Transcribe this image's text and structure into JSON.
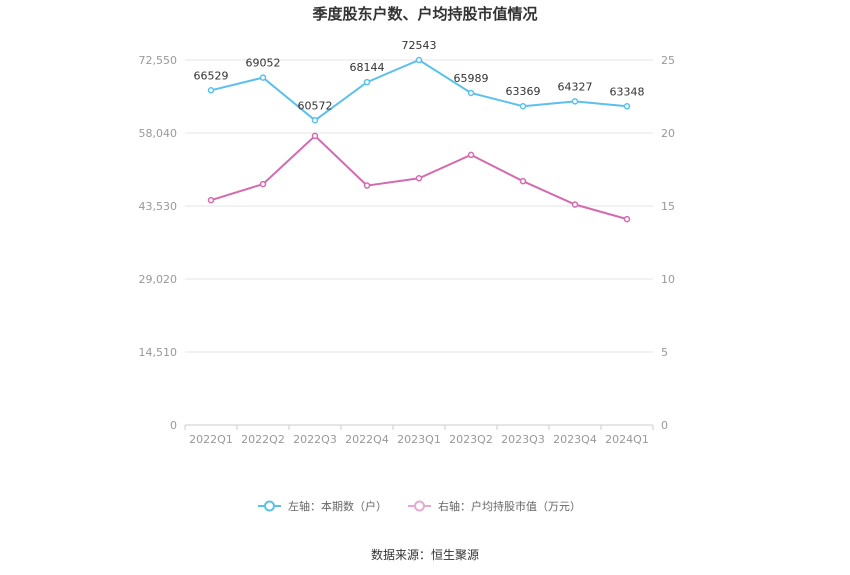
{
  "chart_data": {
    "type": "line",
    "title": "季度股东户数、户均持股市值情况",
    "categories": [
      "2022Q1",
      "2022Q2",
      "2022Q3",
      "2022Q4",
      "2023Q1",
      "2023Q2",
      "2023Q3",
      "2023Q4",
      "2024Q1"
    ],
    "series": [
      {
        "name": "左轴：本期数（户）",
        "axis": "left",
        "color": "#5bc0eb",
        "values": [
          66529,
          69052,
          60572,
          68144,
          72543,
          65989,
          63369,
          64327,
          63348
        ],
        "labels": [
          "66529",
          "69052",
          "60572",
          "68144",
          "72543",
          "65989",
          "63369",
          "64327",
          "63348"
        ]
      },
      {
        "name": "右轴：户均持股市值（万元）",
        "axis": "right",
        "color": "#d36bb0",
        "values": [
          15.4,
          16.5,
          19.8,
          16.4,
          16.9,
          18.5,
          16.7,
          15.1,
          14.1
        ]
      }
    ],
    "y_left": {
      "min": 0,
      "max": 72550,
      "ticks": [
        0,
        14510,
        29020,
        43530,
        58040,
        72550
      ],
      "tick_labels": [
        "0",
        "14,510",
        "29,020",
        "43,530",
        "58,040",
        "72,550"
      ]
    },
    "y_right": {
      "min": 0,
      "max": 25,
      "ticks": [
        0,
        5,
        10,
        15,
        20,
        25
      ],
      "tick_labels": [
        "0",
        "5",
        "10",
        "15",
        "20",
        "25"
      ]
    },
    "grid": true,
    "legend_position": "bottom"
  },
  "source": "数据来源：恒生聚源"
}
